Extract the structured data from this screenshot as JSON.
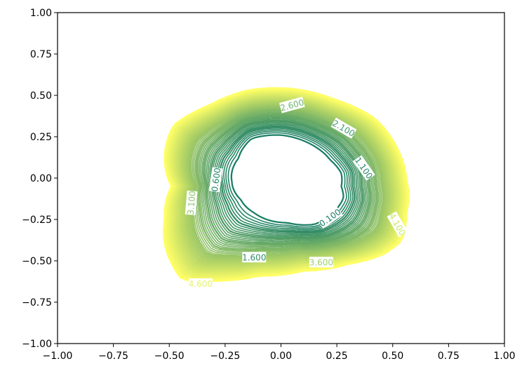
{
  "chart_data": {
    "type": "contour",
    "title": "",
    "xlabel": "",
    "ylabel": "",
    "xlim": [
      -1.0,
      1.0
    ],
    "ylim": [
      -1.0,
      1.0
    ],
    "grid": false,
    "x_ticks": [
      "−1.00",
      "−0.75",
      "−0.50",
      "−0.25",
      "0.00",
      "0.25",
      "0.50",
      "0.75",
      "1.00"
    ],
    "y_ticks": [
      "−1.00",
      "−0.75",
      "−0.50",
      "−0.25",
      "0.00",
      "0.25",
      "0.50",
      "0.75",
      "1.00"
    ],
    "colormap": "summer",
    "color_low": "#1b7f65",
    "color_high": "#ffff66",
    "level_range": [
      0.1,
      4.6
    ],
    "level_step": 0.5,
    "contour_labels": [
      {
        "text": "0.100",
        "x": 0.22,
        "y": -0.24,
        "rotation": -35,
        "color": "#1b7f65"
      },
      {
        "text": "0.600",
        "x": -0.29,
        "y": -0.01,
        "rotation": -82,
        "color": "#23846a"
      },
      {
        "text": "1.100",
        "x": 0.37,
        "y": 0.06,
        "rotation": 55,
        "color": "#2c8a6c"
      },
      {
        "text": "1.600",
        "x": -0.12,
        "y": -0.48,
        "rotation": 0,
        "color": "#33906d"
      },
      {
        "text": "2.100",
        "x": 0.28,
        "y": 0.3,
        "rotation": 30,
        "color": "#409a6f"
      },
      {
        "text": "2.600",
        "x": 0.05,
        "y": 0.44,
        "rotation": -15,
        "color": "#6fb76f"
      },
      {
        "text": "3.100",
        "x": -0.4,
        "y": -0.15,
        "rotation": -85,
        "color": "#8fca70"
      },
      {
        "text": "3.600",
        "x": 0.18,
        "y": -0.51,
        "rotation": 0,
        "color": "#9dd16f"
      },
      {
        "text": "4.100",
        "x": 0.52,
        "y": -0.28,
        "rotation": 60,
        "color": "#c9e86a"
      },
      {
        "text": "4.600",
        "x": -0.36,
        "y": -0.64,
        "rotation": 0,
        "color": "#e6f468"
      }
    ]
  }
}
